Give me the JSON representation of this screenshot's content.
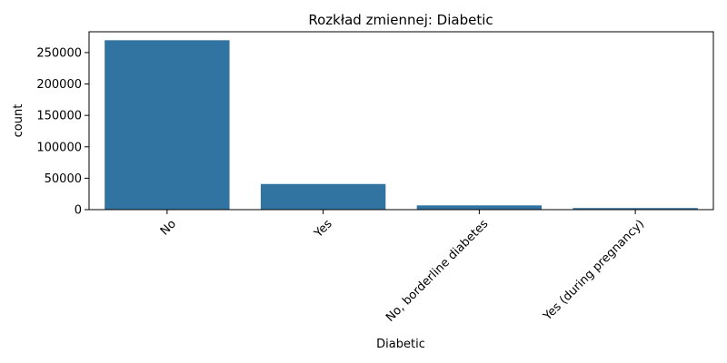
{
  "chart_data": {
    "type": "bar",
    "title": "Rozkład zmiennej: Diabetic",
    "xlabel": "Diabetic",
    "ylabel": "count",
    "categories": [
      "No",
      "Yes",
      "No, borderline diabetes",
      "Yes (during pregnancy)"
    ],
    "values": [
      269653,
      40802,
      6781,
      2559
    ],
    "ylim": [
      0,
      283136
    ],
    "yticks": [
      0,
      50000,
      100000,
      150000,
      200000,
      250000
    ],
    "ytick_labels": [
      "0",
      "50000",
      "100000",
      "150000",
      "200000",
      "250000"
    ],
    "bar_color": "#3274a1",
    "grid": false,
    "xtick_rotation": 45
  }
}
